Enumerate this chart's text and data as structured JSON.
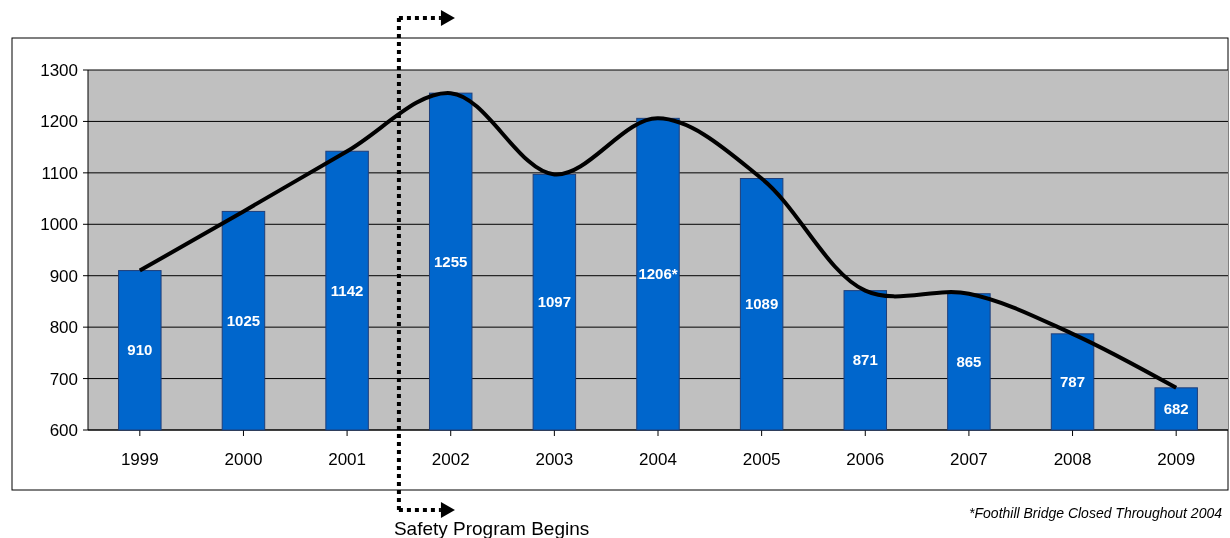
{
  "chart_data": {
    "type": "bar",
    "x": [
      1999,
      2000,
      2001,
      2002,
      2003,
      2004,
      2005,
      2006,
      2007,
      2008,
      2009
    ],
    "xlim": [
      1998.5,
      2009.5
    ],
    "xticks": [
      1999,
      2000,
      2001,
      2002,
      2003,
      2004,
      2005,
      2006,
      2007,
      2008,
      2009
    ],
    "series": [
      {
        "color": "#0066cc",
        "values": [
          910,
          1025,
          1142,
          1255,
          1097,
          1206,
          1089,
          871,
          865,
          787,
          682
        ],
        "value_labels": [
          "910",
          "1025",
          "1142",
          "1255",
          "1097",
          "1206*",
          "1089",
          "871",
          "865",
          "787",
          "682"
        ]
      },
      {
        "type": "line",
        "color": "#000000",
        "values": [
          910,
          1025,
          1142,
          1255,
          1097,
          1206,
          1089,
          871,
          865,
          787,
          682
        ]
      }
    ],
    "ylim": [
      600,
      1300
    ],
    "yticks": [
      600,
      700,
      800,
      900,
      1000,
      1100,
      1200,
      1300
    ],
    "grid": "y",
    "marker": "none",
    "line_style": "solid",
    "ref_lines": [
      {
        "axis": "x",
        "value": 2001.5,
        "label": "Safety Program Begins",
        "color": "#000000",
        "line_style": "dotted"
      }
    ],
    "annotations": [
      "*Foothill Bridge Closed Throughout 2004"
    ]
  }
}
